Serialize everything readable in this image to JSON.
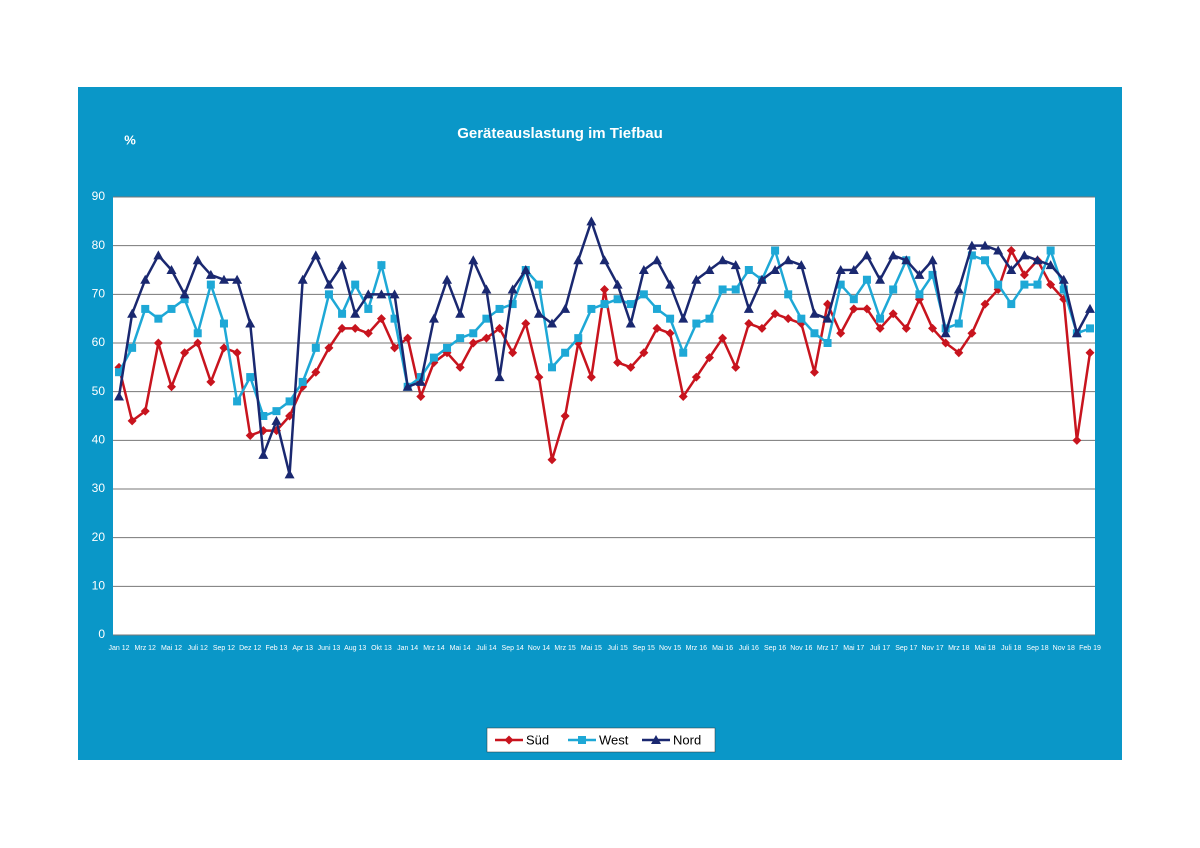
{
  "chart_data": {
    "type": "line",
    "title": "Geräteauslastung im Tiefbau",
    "y_label": "%",
    "categories": [
      "Jan 12",
      null,
      "Mrz 12",
      null,
      "Mai 12",
      null,
      "Juli 12",
      null,
      "Sep 12",
      null,
      "Dez 12",
      null,
      "Feb 13",
      null,
      "Apr 13",
      null,
      "Juni 13",
      null,
      "Aug 13",
      null,
      "Okt 13",
      null,
      "Jan 14",
      null,
      "Mrz 14",
      null,
      "Mai 14",
      null,
      "Juli 14",
      null,
      "Sep 14",
      null,
      "Nov 14",
      null,
      "Mrz 15",
      null,
      "Mai 15",
      null,
      "Juli 15",
      null,
      "Sep 15",
      null,
      "Nov 15",
      null,
      "Mrz 16",
      null,
      "Mai 16",
      null,
      "Juli 16",
      null,
      "Sep 16",
      null,
      "Nov 16",
      null,
      "Mrz 17",
      null,
      "Mai 17",
      null,
      "Juli 17",
      null,
      "Sep 17",
      null,
      "Nov 17",
      null,
      "Mrz 18",
      null,
      "Mai 18",
      null,
      "Juli 18",
      null,
      "Sep 18",
      null,
      "Nov 18",
      null,
      "Feb 19"
    ],
    "series": [
      {
        "name": "Süd",
        "color": "#c8141e",
        "marker": "diamond",
        "values": [
          55,
          44,
          46,
          60,
          51,
          58,
          60,
          52,
          59,
          58,
          41,
          42,
          42,
          45,
          51,
          54,
          59,
          63,
          63,
          62,
          65,
          59,
          61,
          49,
          56,
          58,
          55,
          60,
          61,
          63,
          58,
          64,
          53,
          36,
          45,
          60,
          53,
          71,
          56,
          55,
          58,
          63,
          62,
          49,
          53,
          57,
          61,
          55,
          64,
          63,
          66,
          65,
          64,
          54,
          68,
          62,
          67,
          67,
          63,
          66,
          63,
          69,
          63,
          60,
          58,
          62,
          68,
          71,
          79,
          74,
          77,
          72,
          69,
          40,
          58
        ]
      },
      {
        "name": "West",
        "color": "#1ea8d6",
        "marker": "square",
        "values": [
          54,
          59,
          67,
          65,
          67,
          69,
          62,
          72,
          64,
          48,
          53,
          45,
          46,
          48,
          52,
          59,
          70,
          66,
          72,
          67,
          76,
          65,
          51,
          53,
          57,
          59,
          61,
          62,
          65,
          67,
          68,
          75,
          72,
          55,
          58,
          61,
          67,
          68,
          69,
          68,
          70,
          67,
          65,
          58,
          64,
          65,
          71,
          71,
          75,
          73,
          79,
          70,
          65,
          62,
          60,
          72,
          69,
          73,
          65,
          71,
          77,
          70,
          74,
          63,
          64,
          78,
          77,
          72,
          68,
          72,
          72,
          79,
          71,
          62,
          63
        ]
      },
      {
        "name": "Nord",
        "color": "#1a2870",
        "marker": "triangle",
        "values": [
          49,
          66,
          73,
          78,
          75,
          70,
          77,
          74,
          73,
          73,
          64,
          37,
          44,
          33,
          73,
          78,
          72,
          76,
          66,
          70,
          70,
          70,
          51,
          52,
          65,
          73,
          66,
          77,
          71,
          53,
          71,
          75,
          66,
          64,
          67,
          77,
          85,
          77,
          72,
          64,
          75,
          77,
          72,
          65,
          73,
          75,
          77,
          76,
          67,
          73,
          75,
          77,
          76,
          66,
          65,
          75,
          75,
          78,
          73,
          78,
          77,
          74,
          77,
          62,
          71,
          80,
          80,
          79,
          75,
          78,
          77,
          76,
          73,
          62,
          67
        ]
      }
    ],
    "ylim": [
      0,
      90
    ],
    "yticks": [
      0,
      10,
      20,
      30,
      40,
      50,
      60,
      70,
      80,
      90
    ],
    "grid": true,
    "legend": "bottom"
  }
}
